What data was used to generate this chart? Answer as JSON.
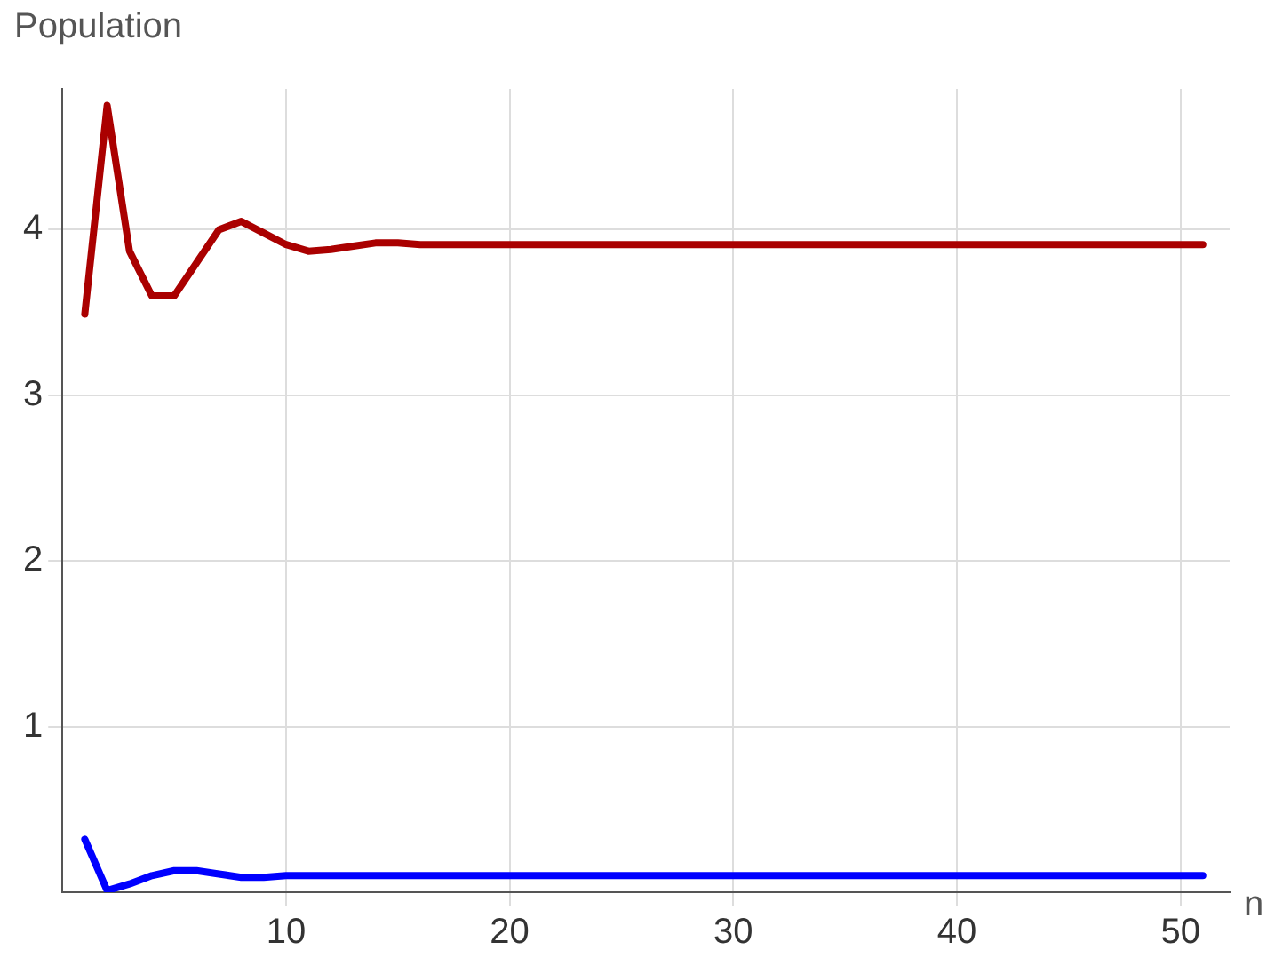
{
  "chart_data": {
    "type": "line",
    "xlabel": "n",
    "ylabel": "Population",
    "x": [
      1,
      2,
      3,
      4,
      5,
      6,
      7,
      8,
      9,
      10,
      11,
      12,
      13,
      14,
      15,
      16,
      17,
      18,
      19,
      20,
      21,
      22,
      23,
      24,
      25,
      26,
      27,
      28,
      29,
      30,
      31,
      32,
      33,
      34,
      35,
      36,
      37,
      38,
      39,
      40,
      41,
      42,
      43,
      44,
      45,
      46,
      47,
      48,
      49,
      50,
      51
    ],
    "series": [
      {
        "color": "#aa0000",
        "values": [
          3.49,
          4.75,
          3.87,
          3.6,
          3.6,
          3.8,
          4.0,
          4.05,
          3.98,
          3.91,
          3.87,
          3.88,
          3.9,
          3.92,
          3.92,
          3.91,
          3.91,
          3.91,
          3.91,
          3.91,
          3.91,
          3.91,
          3.91,
          3.91,
          3.91,
          3.91,
          3.91,
          3.91,
          3.91,
          3.91,
          3.91,
          3.91,
          3.91,
          3.91,
          3.91,
          3.91,
          3.91,
          3.91,
          3.91,
          3.91,
          3.91,
          3.91,
          3.91,
          3.91,
          3.91,
          3.91,
          3.91,
          3.91,
          3.91,
          3.91,
          3.91
        ]
      },
      {
        "color": "#0000ff",
        "values": [
          0.32,
          0.01,
          0.05,
          0.1,
          0.13,
          0.13,
          0.11,
          0.09,
          0.09,
          0.1,
          0.1,
          0.1,
          0.1,
          0.1,
          0.1,
          0.1,
          0.1,
          0.1,
          0.1,
          0.1,
          0.1,
          0.1,
          0.1,
          0.1,
          0.1,
          0.1,
          0.1,
          0.1,
          0.1,
          0.1,
          0.1,
          0.1,
          0.1,
          0.1,
          0.1,
          0.1,
          0.1,
          0.1,
          0.1,
          0.1,
          0.1,
          0.1,
          0.1,
          0.1,
          0.1,
          0.1,
          0.1,
          0.1,
          0.1,
          0.1,
          0.1
        ]
      }
    ],
    "xlim": [
      0,
      52.2
    ],
    "ylim": [
      0,
      4.85
    ],
    "xticks": [
      10,
      20,
      30,
      40,
      50
    ],
    "yticks": [
      1,
      2,
      3,
      4
    ],
    "grid": true,
    "legend": false,
    "marker": "none",
    "line_style": "solid"
  }
}
